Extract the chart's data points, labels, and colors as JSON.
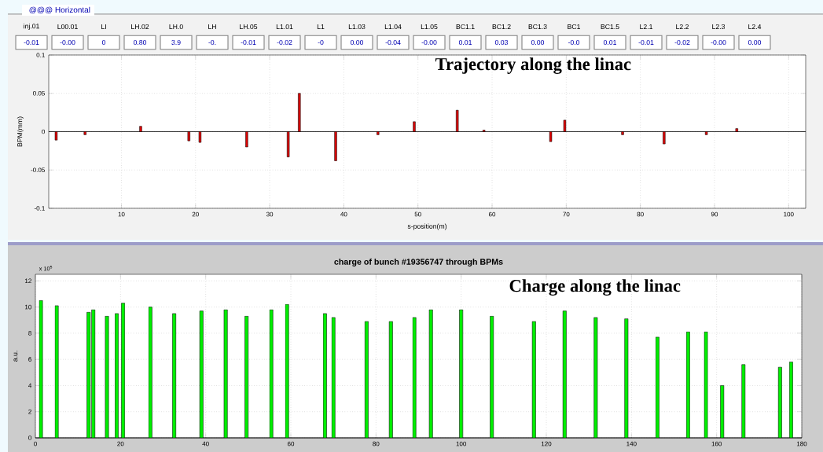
{
  "chart_data": [
    {
      "type": "other",
      "title": "@@@ Horizontal",
      "categories": [
        "inj.01",
        "L00.01",
        "LI",
        "LH.02",
        "LH.0",
        "LH",
        "LH.05",
        "L1.01",
        "L1",
        "L1.03",
        "L1.04",
        "L1.05",
        "BC1.1",
        "BC1.2",
        "BC1.3",
        "BC1",
        "BC1.5",
        "L2.1",
        "L2.2",
        "L2.3",
        "L2.4"
      ],
      "value_labels": [
        "-0.01",
        "-0.00",
        "0",
        "0.80",
        "3.9",
        "-0.",
        "-0.01",
        "-0.02",
        "-0",
        "0.00",
        "-0.04",
        "-0.00",
        "0.01",
        "0.03",
        "0.00",
        "-0.0",
        "0.01",
        "-0.01",
        "-0.02",
        "-0.00",
        "0.00"
      ]
    },
    {
      "type": "bar",
      "xlabel": "s-position(m)",
      "ylabel": "BPM(mm)",
      "annotations": [
        "Trajectory along the linac"
      ],
      "x": [
        1.2,
        5.1,
        12.6,
        13.6,
        16.8,
        19.1,
        20.6,
        26.9,
        32.5,
        34.0,
        38.9,
        44.6,
        49.5,
        55.3,
        58.9,
        67.9,
        69.8,
        77.6,
        83.2,
        88.9,
        93.0
      ],
      "values": [
        -0.011,
        -0.004,
        0.007,
        null,
        null,
        -0.012,
        -0.014,
        -0.02,
        -0.033,
        0.05,
        -0.038,
        -0.004,
        0.013,
        0.028,
        0.002,
        -0.013,
        0.015,
        -0.004,
        -0.016,
        -0.004,
        0.004
      ],
      "colors": [
        "#e00000",
        "#e00000",
        "#e00000",
        "#000000",
        "#e00000",
        "#e00000",
        "#e00000",
        "#e00000",
        "#e00000",
        "#000000",
        "#e00000",
        "#e00000",
        "#e00000",
        "#e00000",
        "#000000",
        "#e00000",
        "#000000",
        "#e00000",
        "#e00000",
        "#e00000",
        "#e00000"
      ],
      "xlim": [
        0.2,
        102.3
      ],
      "ylim": [
        -0.1,
        0.1
      ],
      "xticks": [
        10,
        20,
        30,
        40,
        50,
        60,
        70,
        80,
        90,
        100
      ],
      "yticks": [
        -0.1,
        -0.05,
        0,
        0.05,
        0.1
      ],
      "grid": true
    },
    {
      "type": "bar",
      "title": "charge of bunch #19356747 through BPMs",
      "ylabel": "a.u.",
      "annotations": [
        "x 10$^{5}$",
        "Charge along the linac"
      ],
      "x": [
        1.3,
        5.0,
        12.5,
        13.6,
        16.8,
        19.1,
        20.6,
        27.0,
        32.6,
        39.0,
        44.7,
        49.6,
        55.4,
        59.1,
        68.0,
        70.0,
        77.8,
        83.5,
        89.0,
        92.9,
        100.0,
        107.2,
        117.1,
        124.3,
        131.6,
        138.8,
        146.1,
        153.3,
        157.5,
        161.3,
        166.3,
        174.9,
        177.5
      ],
      "values": [
        10.5,
        10.1,
        9.6,
        9.8,
        9.3,
        9.5,
        10.3,
        10.0,
        9.5,
        9.7,
        9.8,
        9.3,
        9.8,
        10.2,
        9.5,
        9.2,
        8.9,
        8.9,
        9.2,
        9.8,
        9.8,
        9.3,
        8.9,
        9.7,
        9.2,
        9.1,
        7.7,
        8.1,
        8.1,
        4.0,
        5.6,
        5.4,
        5.8
      ],
      "color": "#00ee00",
      "xlim": [
        0,
        180
      ],
      "ylim": [
        0,
        12.5
      ],
      "xticks": [
        0,
        20,
        40,
        60,
        80,
        100,
        120,
        140,
        160,
        180
      ],
      "yticks": [
        0,
        2,
        4,
        6,
        8,
        10,
        12
      ],
      "grid": true
    }
  ]
}
